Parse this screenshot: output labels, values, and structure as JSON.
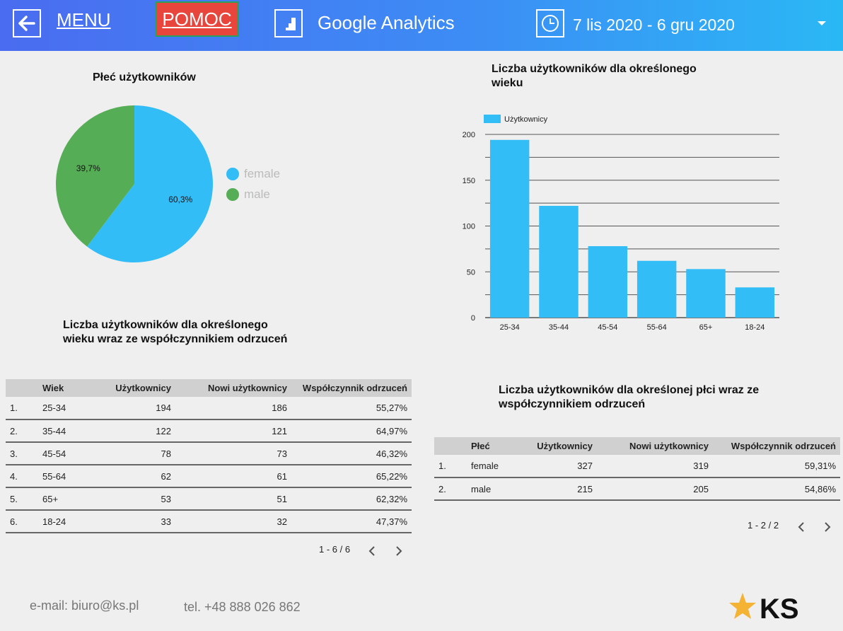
{
  "header": {
    "menu_label": "MENU",
    "help_label": "POMOC",
    "title": "Google Analytics",
    "date_range": "7 lis 2020 - 6 gru 2020"
  },
  "gender_pie": {
    "title": "Płeć użytkowników",
    "legend": [
      "female",
      "male"
    ],
    "labels": [
      "60,3%",
      "39,7%"
    ]
  },
  "age_table": {
    "title": "Liczba użytkowników dla określonego wieku wraz ze współczynnikiem odrzuceń",
    "headers": [
      "Wiek",
      "Użytkownicy",
      "Nowi użytkownicy",
      "Współczynnik odrzuceń"
    ],
    "rows": [
      {
        "n": "1.",
        "age": "25-34",
        "users": "194",
        "new_users": "186",
        "bounce": "55,27%"
      },
      {
        "n": "2.",
        "age": "35-44",
        "users": "122",
        "new_users": "121",
        "bounce": "64,97%"
      },
      {
        "n": "3.",
        "age": "45-54",
        "users": "78",
        "new_users": "73",
        "bounce": "46,32%"
      },
      {
        "n": "4.",
        "age": "55-64",
        "users": "62",
        "new_users": "61",
        "bounce": "65,22%"
      },
      {
        "n": "5.",
        "age": "65+",
        "users": "53",
        "new_users": "51",
        "bounce": "62,32%"
      },
      {
        "n": "6.",
        "age": "18-24",
        "users": "33",
        "new_users": "32",
        "bounce": "47,37%"
      }
    ],
    "pagination": "1 - 6 / 6"
  },
  "age_chart": {
    "title": "Liczba użytkowników dla określonego wieku"
  },
  "gender_table": {
    "title": "Liczba użytkowników dla określonej płci wraz ze współczynnikiem odrzuceń",
    "headers": [
      "Płeć",
      "Użytkownicy",
      "Nowi użytkownicy",
      "Współczynnik odrzuceń"
    ],
    "rows": [
      {
        "n": "1.",
        "gender": "female",
        "users": "327",
        "new_users": "319",
        "bounce": "59,31%"
      },
      {
        "n": "2.",
        "gender": "male",
        "users": "215",
        "new_users": "205",
        "bounce": "54,86%"
      }
    ],
    "pagination": "1 - 2 / 2"
  },
  "footer": {
    "email": "e-mail: biuro@ks.pl",
    "phone": "tel. +48 888 026 862",
    "logo_text": "KS"
  },
  "colors": {
    "female": "#33bdf7",
    "male": "#55ad55",
    "bar": "#33bdf7",
    "help_button": "#e8453c"
  },
  "chart_data": [
    {
      "type": "pie",
      "title": "Płeć użytkowników",
      "categories": [
        "female",
        "male"
      ],
      "values": [
        60.3,
        39.7
      ],
      "value_labels": [
        "60,3%",
        "39,7%"
      ],
      "legend": "right"
    },
    {
      "type": "bar",
      "title": "Liczba użytkowników dla określonego wieku",
      "categories": [
        "25-34",
        "35-44",
        "45-54",
        "55-64",
        "65+",
        "18-24"
      ],
      "series": [
        {
          "name": "Użytkownicy",
          "values": [
            194,
            122,
            78,
            62,
            53,
            33
          ]
        }
      ],
      "yticks": [
        "0",
        "50",
        "100",
        "150",
        "200"
      ],
      "ylim": [
        0,
        200
      ],
      "grid": true,
      "legend": "top-left"
    }
  ]
}
